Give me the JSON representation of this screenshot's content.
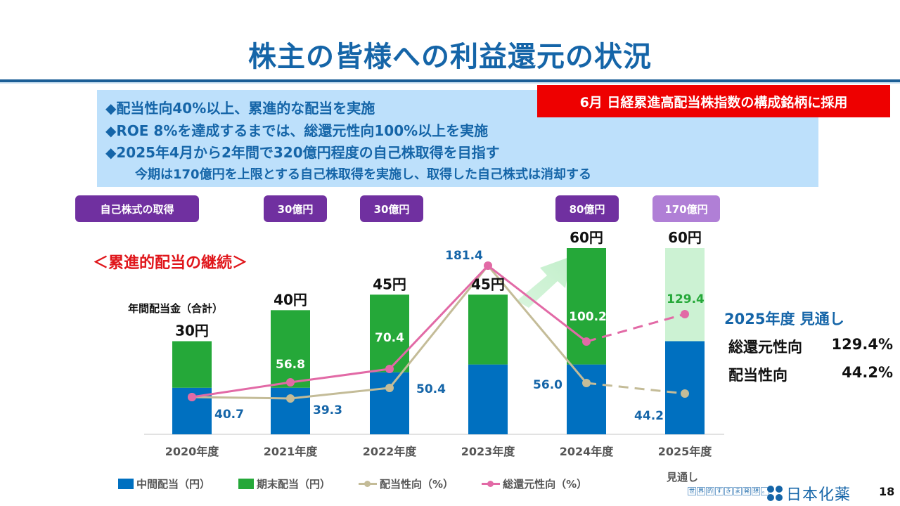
{
  "page": {
    "title": "株主の皆様への利益還元の状況",
    "page_number": "18"
  },
  "policy": {
    "lines": [
      "◆配当性向40%以上、累進的な配当を実施",
      "◆ROE 8%を達成するまでは、総還元性向100%以上を実施",
      "◆2025年4月から2年間で320億円程度の自己株取得を目指す"
    ],
    "sub_line": "今期は170億円を上限とする自己株取得を実施し、取得した自己株式は消却する"
  },
  "banner": {
    "text": "6月 日経累進高配当株指数の構成銘柄に採用",
    "color": "#ee0000"
  },
  "buyback": {
    "label": "自己株式の取得",
    "amounts": [
      {
        "year": "2021年度",
        "value": "30億円",
        "forecast": false
      },
      {
        "year": "2022年度",
        "value": "30億円",
        "forecast": false
      },
      {
        "year": "2024年度",
        "value": "80億円",
        "forecast": false
      },
      {
        "year": "2025年度",
        "value": "170億円",
        "forecast": true
      }
    ]
  },
  "section_heading": "＜累進的配当の継続＞",
  "annual_dividend_label": "年間配当金（合計）",
  "forecast_summary": {
    "title": "2025年度 見通し",
    "rows": [
      {
        "label": "総還元性向",
        "value": "129.4%"
      },
      {
        "label": "配当性向",
        "value": "44.2%"
      }
    ]
  },
  "forecast_tag": "見通し",
  "footer": {
    "tagline_chars": [
      "世",
      "界",
      "的",
      "す",
      "き",
      "ま",
      "発",
      "想",
      "。"
    ],
    "company": "日本化薬"
  },
  "chart_data": {
    "type": "bar",
    "stacked": true,
    "categories": [
      "2020年度",
      "2021年度",
      "2022年度",
      "2023年度",
      "2024年度",
      "2025年度"
    ],
    "forecast_index": 5,
    "series": [
      {
        "name": "中間配当（円）",
        "values": [
          15,
          15,
          20,
          22.5,
          22.5,
          30
        ],
        "color": "#0070c0"
      },
      {
        "name": "期末配当（円）",
        "values": [
          15,
          25,
          25,
          22.5,
          37.5,
          30
        ],
        "color": "#25a839",
        "forecast_color": "#ccf2d3"
      }
    ],
    "totals": [
      "30円",
      "40円",
      "45円",
      "45円",
      "60円",
      "60円"
    ],
    "lines": [
      {
        "name": "配当性向（%）",
        "values": [
          40.7,
          39.3,
          50.4,
          181.4,
          56.0,
          44.2
        ],
        "color": "#c4bc98",
        "labels": [
          "40.7",
          "39.3",
          "50.4",
          "",
          "56.0",
          "44.2"
        ]
      },
      {
        "name": "総還元性向（%）",
        "values": [
          40.7,
          56.8,
          70.4,
          181.4,
          100.2,
          129.4
        ],
        "color": "#e26aa6",
        "labels": [
          "",
          "56.8",
          "70.4",
          "181.4",
          "100.2",
          "129.4"
        ]
      }
    ],
    "dividend_ylim": [
      0,
      60
    ],
    "legend": [
      "中間配当（円）",
      "期末配当（円）",
      "配当性向（%）",
      "総還元性向（%）"
    ],
    "legend_position": "bottom"
  }
}
